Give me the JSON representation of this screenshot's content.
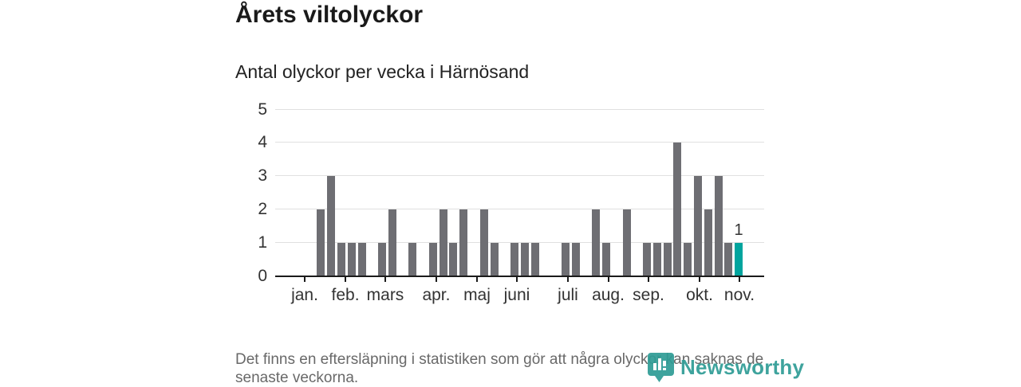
{
  "title": "Årets viltolyckor",
  "subtitle": "Antal olyckor per vecka i Härnösand",
  "footer_note": "Det finns en eftersläpning i statistiken som gör att några olyckor kan saknas de senaste veckorna.",
  "brand": {
    "name": "Newsworthy",
    "color": "#2e9c95",
    "icon": "newsworthy-pin-barchart-icon"
  },
  "chart_data": {
    "type": "bar",
    "title": "Årets viltolyckor",
    "subtitle": "Antal olyckor per vecka i Härnösand",
    "xlabel": "",
    "ylabel": "Antal olyckor per vecka",
    "ylim": [
      0,
      5
    ],
    "yticks": [
      0,
      1,
      2,
      3,
      4,
      5
    ],
    "grid": true,
    "bar_color": "#6e6e73",
    "highlight_color": "#00a49e",
    "gridline_color": "#e0e0e0",
    "axis_color": "#1b1b1b",
    "weekly_values": [
      0,
      0,
      0,
      0,
      2,
      3,
      1,
      1,
      1,
      0,
      1,
      2,
      0,
      1,
      0,
      1,
      2,
      1,
      2,
      0,
      2,
      1,
      0,
      1,
      1,
      1,
      0,
      0,
      1,
      1,
      0,
      2,
      1,
      0,
      2,
      0,
      1,
      1,
      1,
      4,
      1,
      3,
      2,
      3,
      1,
      1,
      0,
      0
    ],
    "highlight_index": 45,
    "highlight_value_label": "1",
    "month_ticks": [
      {
        "label": "jan.",
        "pos": 0.0604
      },
      {
        "label": "feb.",
        "pos": 0.1436
      },
      {
        "label": "mars",
        "pos": 0.2251
      },
      {
        "label": "apr.",
        "pos": 0.3295
      },
      {
        "label": "maj",
        "pos": 0.4127
      },
      {
        "label": "juni",
        "pos": 0.4943
      },
      {
        "label": "juli",
        "pos": 0.5987
      },
      {
        "label": "aug.",
        "pos": 0.6811
      },
      {
        "label": "sep.",
        "pos": 0.7635
      },
      {
        "label": "okt.",
        "pos": 0.8679
      },
      {
        "label": "nov.",
        "pos": 0.9494
      }
    ]
  }
}
